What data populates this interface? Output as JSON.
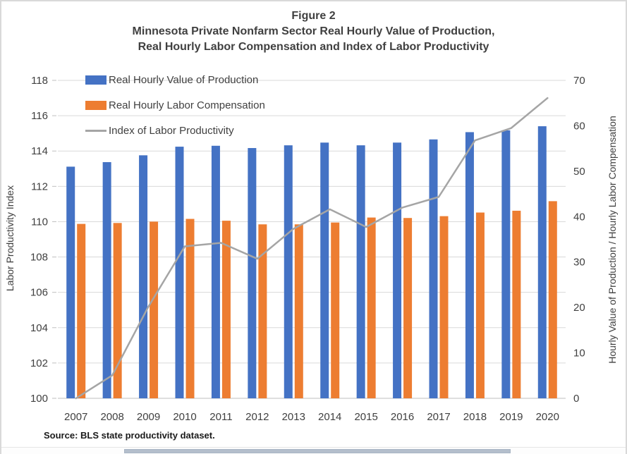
{
  "figure": {
    "title_line1": "Figure 2",
    "title_line2": "Minnesota Private Nonfarm Sector Real Hourly Value of Production,",
    "title_line3": "Real Hourly Labor Compensation and Index of Labor Productivity",
    "source_note": "Source: BLS state productivity dataset."
  },
  "chart_data": {
    "type": "bar+line combo",
    "categories": [
      "2007",
      "2008",
      "2009",
      "2010",
      "2011",
      "2012",
      "2013",
      "2014",
      "2015",
      "2016",
      "2017",
      "2018",
      "2019",
      "2020"
    ],
    "series": [
      {
        "name": "Real Hourly Value of Production",
        "type": "bar",
        "axis": "right",
        "color": "#4472C4",
        "values": [
          51.0,
          52.0,
          53.5,
          55.4,
          55.6,
          55.1,
          55.7,
          56.3,
          55.7,
          56.3,
          57.0,
          58.6,
          59.0,
          59.9
        ]
      },
      {
        "name": "Real Hourly Labor Compensation",
        "type": "bar",
        "axis": "right",
        "color": "#ED7D31",
        "values": [
          38.4,
          38.6,
          38.9,
          39.5,
          39.1,
          38.3,
          38.3,
          38.7,
          39.8,
          39.7,
          40.1,
          40.9,
          41.3,
          43.4
        ]
      },
      {
        "name": "Index of Labor Productivity",
        "type": "line",
        "axis": "left",
        "color": "#A5A5A5",
        "values": [
          100.0,
          101.3,
          105.2,
          108.6,
          108.8,
          107.9,
          109.6,
          110.7,
          109.7,
          110.8,
          111.4,
          114.6,
          115.3,
          117.0
        ]
      }
    ],
    "left_axis": {
      "label": "Labor Productivity Index",
      "min": 100,
      "max": 118,
      "ticks": [
        100,
        102,
        104,
        106,
        108,
        110,
        112,
        114,
        116,
        118
      ]
    },
    "right_axis": {
      "label": "Hourly Value of Production / Hourly Labor Compensation",
      "min": 0,
      "max": 70,
      "ticks": [
        0,
        10,
        20,
        30,
        40,
        50,
        60,
        70
      ]
    },
    "legend_position": "top-left inside plot, vertical",
    "grid": true
  },
  "ui": {
    "grid_color": "#D9D9D9",
    "baseline_color": "#BFBFBF",
    "text_color": "#404040",
    "border_color": "#D9D9D9",
    "scrollbar_thumb_color": "#B4BFCC"
  }
}
